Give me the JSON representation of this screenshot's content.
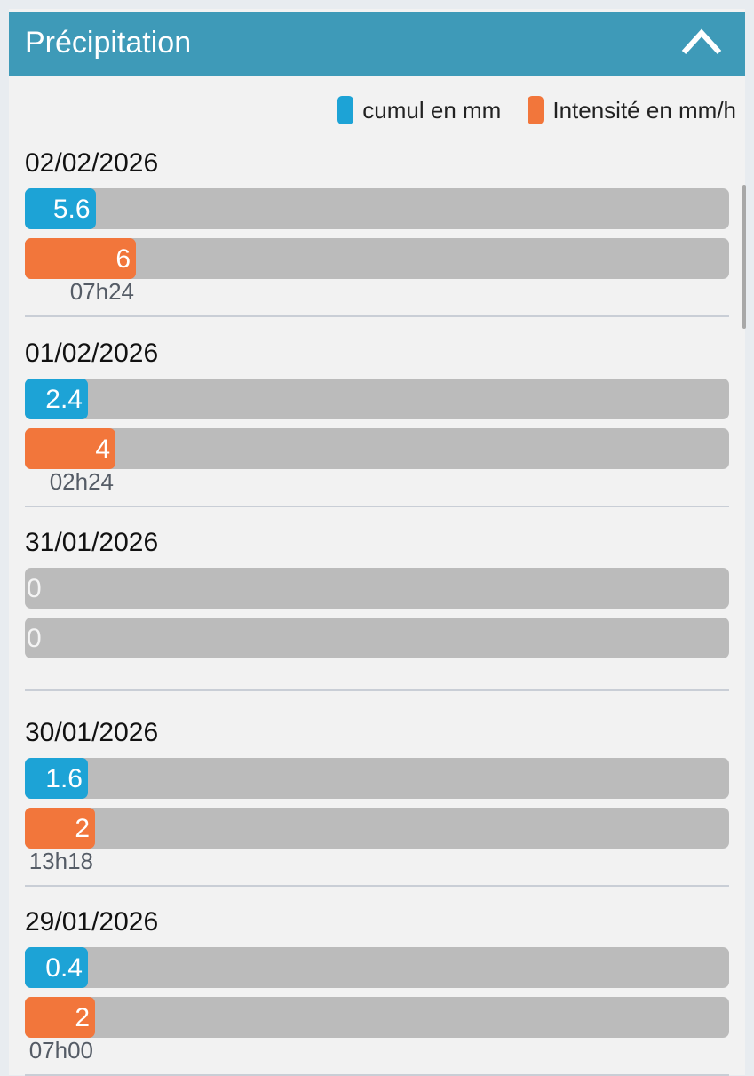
{
  "header": {
    "title": "Précipitation",
    "collapse_icon": "chevron-up-icon"
  },
  "legend": [
    {
      "label": "cumul en mm",
      "color": "#1da3d6"
    },
    {
      "label": "Intensité en mm/h",
      "color": "#f2763b"
    }
  ],
  "days": [
    {
      "date": "02/02/2026",
      "cumul": "5.6",
      "intensity": "6",
      "time": "07h24"
    },
    {
      "date": "01/02/2026",
      "cumul": "2.4",
      "intensity": "4",
      "time": "02h24"
    },
    {
      "date": "31/01/2026",
      "cumul": "0",
      "intensity": "0",
      "time": ""
    },
    {
      "date": "30/01/2026",
      "cumul": "1.6",
      "intensity": "2",
      "time": "13h18"
    },
    {
      "date": "29/01/2026",
      "cumul": "0.4",
      "intensity": "2",
      "time": "07h00"
    }
  ]
}
